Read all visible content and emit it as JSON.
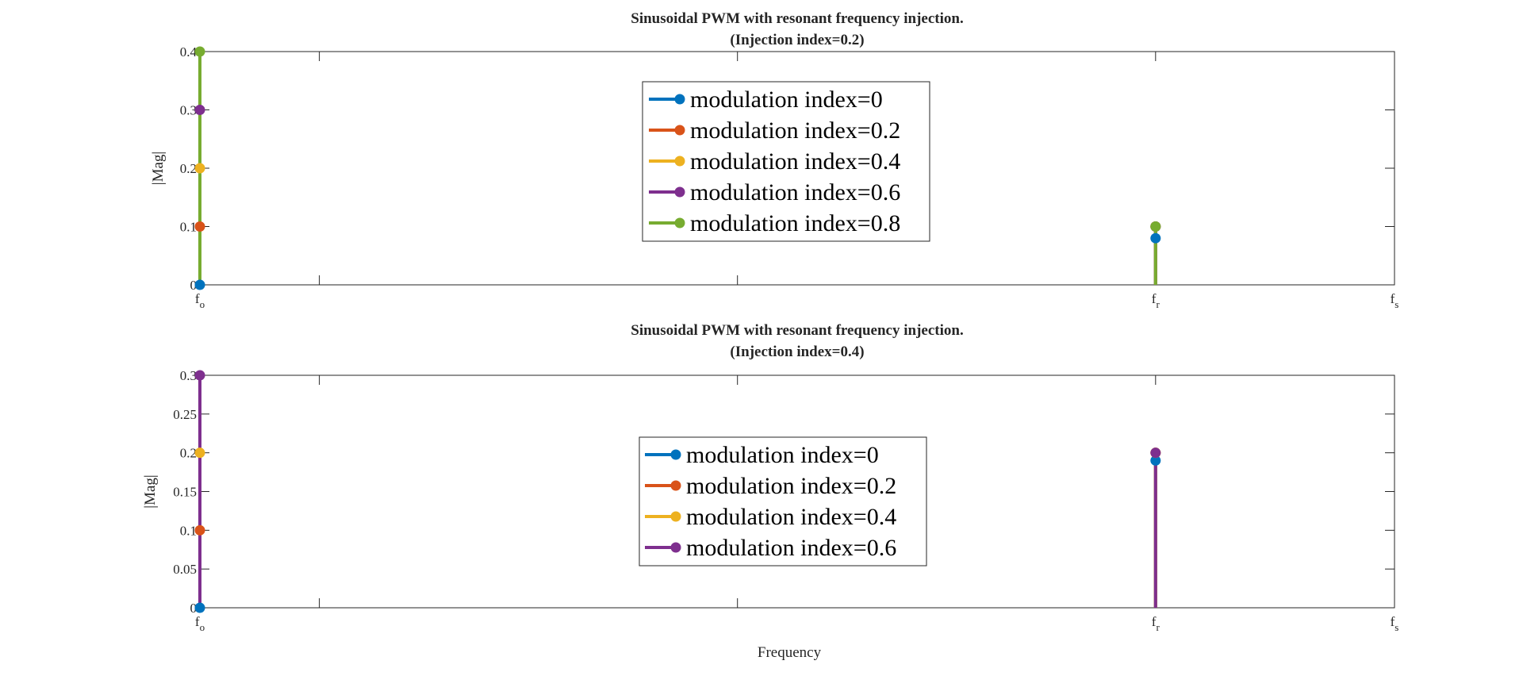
{
  "chart_data": [
    {
      "type": "stem",
      "title_lines": [
        "Sinusoidal PWM with resonant frequency injection.",
        "(Injection index=0.2)"
      ],
      "xlabel": "",
      "ylabel": "|Mag|",
      "xlim": [
        0,
        10
      ],
      "ylim": [
        0,
        0.4
      ],
      "x_ticks": [
        {
          "value": 0,
          "base": "f",
          "sub": "o"
        },
        {
          "value": 8,
          "base": "f",
          "sub": "r"
        },
        {
          "value": 10,
          "base": "f",
          "sub": "s"
        }
      ],
      "minor_ticks": [
        1,
        4.5
      ],
      "y_ticks": [
        {
          "value": 0,
          "label": "0"
        },
        {
          "value": 0.1,
          "label": "0.1"
        },
        {
          "value": 0.2,
          "label": "0.2"
        },
        {
          "value": 0.3,
          "label": "0.3"
        },
        {
          "value": 0.4,
          "label": "0.4"
        }
      ],
      "legend_position": "top-center",
      "series": [
        {
          "name": "modulation index=0",
          "color": "#0072BD",
          "points": [
            {
              "x": 0,
              "y": 0
            },
            {
              "x": 8,
              "y": 0.08
            }
          ]
        },
        {
          "name": "modulation index=0.2",
          "color": "#D95319",
          "points": [
            {
              "x": 0,
              "y": 0.1
            },
            {
              "x": 8,
              "y": 0.1
            }
          ]
        },
        {
          "name": "modulation index=0.4",
          "color": "#EDB120",
          "points": [
            {
              "x": 0,
              "y": 0.2
            },
            {
              "x": 8,
              "y": 0.1
            }
          ]
        },
        {
          "name": "modulation index=0.6",
          "color": "#7E2F8E",
          "points": [
            {
              "x": 0,
              "y": 0.3
            },
            {
              "x": 8,
              "y": 0.1
            }
          ]
        },
        {
          "name": "modulation index=0.8",
          "color": "#77AC30",
          "points": [
            {
              "x": 0,
              "y": 0.4
            },
            {
              "x": 8,
              "y": 0.1
            }
          ]
        }
      ]
    },
    {
      "type": "stem",
      "title_lines": [
        "Sinusoidal PWM with resonant frequency injection.",
        "(Injection index=0.4)"
      ],
      "xlabel": "Frequency",
      "ylabel": "|Mag|",
      "xlim": [
        0,
        10
      ],
      "ylim": [
        0,
        0.3
      ],
      "x_ticks": [
        {
          "value": 0,
          "base": "f",
          "sub": "o"
        },
        {
          "value": 8,
          "base": "f",
          "sub": "r"
        },
        {
          "value": 10,
          "base": "f",
          "sub": "s"
        }
      ],
      "minor_ticks": [
        1,
        4.5
      ],
      "y_ticks": [
        {
          "value": 0,
          "label": "0"
        },
        {
          "value": 0.05,
          "label": "0.05"
        },
        {
          "value": 0.1,
          "label": "0.1"
        },
        {
          "value": 0.15,
          "label": "0.15"
        },
        {
          "value": 0.2,
          "label": "0.2"
        },
        {
          "value": 0.25,
          "label": "0.25"
        },
        {
          "value": 0.3,
          "label": "0.3"
        }
      ],
      "legend_position": "center",
      "series": [
        {
          "name": "modulation index=0",
          "color": "#0072BD",
          "points": [
            {
              "x": 0,
              "y": 0
            },
            {
              "x": 8,
              "y": 0.19
            }
          ]
        },
        {
          "name": "modulation index=0.2",
          "color": "#D95319",
          "points": [
            {
              "x": 0,
              "y": 0.1
            },
            {
              "x": 8,
              "y": 0.2
            }
          ]
        },
        {
          "name": "modulation index=0.4",
          "color": "#EDB120",
          "points": [
            {
              "x": 0,
              "y": 0.2
            },
            {
              "x": 8,
              "y": 0.2
            }
          ]
        },
        {
          "name": "modulation index=0.6",
          "color": "#7E2F8E",
          "points": [
            {
              "x": 0,
              "y": 0.3
            },
            {
              "x": 8,
              "y": 0.2
            }
          ]
        }
      ]
    }
  ]
}
